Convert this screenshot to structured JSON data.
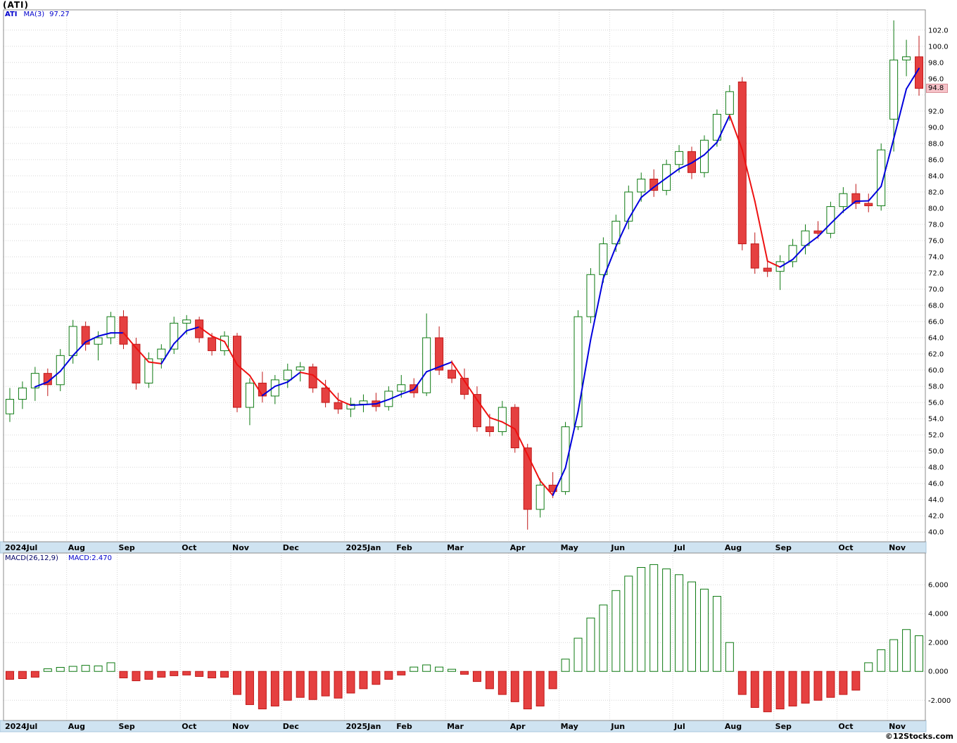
{
  "page": {
    "title": "(ATI)",
    "watermark": "©12Stocks.com"
  },
  "chart_data": {
    "type": "candlestick",
    "sub_chart": "macd_bar",
    "symbol": "ATI",
    "legend": {
      "symbol": "ATI",
      "ma_label": "MA(3)",
      "ma_value": "97.27"
    },
    "ma_period": 3,
    "price_axis": {
      "min": 40,
      "max": 102,
      "step": 2,
      "suppress_label_at": 94,
      "last_price": "94.8"
    },
    "x_axis_months": [
      {
        "label": "2024Jul",
        "week_index": 0
      },
      {
        "label": "Aug",
        "week_index": 5
      },
      {
        "label": "Sep",
        "week_index": 9
      },
      {
        "label": "Oct",
        "week_index": 14
      },
      {
        "label": "Nov",
        "week_index": 18
      },
      {
        "label": "Dec",
        "week_index": 22
      },
      {
        "label": "2025Jan",
        "week_index": 27
      },
      {
        "label": "Feb",
        "week_index": 31
      },
      {
        "label": "Mar",
        "week_index": 35
      },
      {
        "label": "Apr",
        "week_index": 40
      },
      {
        "label": "May",
        "week_index": 44
      },
      {
        "label": "Jun",
        "week_index": 48
      },
      {
        "label": "Jul",
        "week_index": 53
      },
      {
        "label": "Aug",
        "week_index": 57
      },
      {
        "label": "Sep",
        "week_index": 61
      },
      {
        "label": "Oct",
        "week_index": 66
      },
      {
        "label": "Nov",
        "week_index": 70
      }
    ],
    "candles_ohlc": [
      [
        54.6,
        57.8,
        53.6,
        56.4
      ],
      [
        56.4,
        58.6,
        55.2,
        57.8
      ],
      [
        57.8,
        60.4,
        56.2,
        59.6
      ],
      [
        59.6,
        60.2,
        56.8,
        58.2
      ],
      [
        58.2,
        62.6,
        57.4,
        61.8
      ],
      [
        61.8,
        66.2,
        60.8,
        65.4
      ],
      [
        65.4,
        66.0,
        62.4,
        63.2
      ],
      [
        63.2,
        64.8,
        61.2,
        64.0
      ],
      [
        64.0,
        67.2,
        63.2,
        66.6
      ],
      [
        66.6,
        67.4,
        62.6,
        63.2
      ],
      [
        63.2,
        64.0,
        57.6,
        58.4
      ],
      [
        58.4,
        62.2,
        57.8,
        61.4
      ],
      [
        61.4,
        63.2,
        60.2,
        62.6
      ],
      [
        62.6,
        66.6,
        62.0,
        65.8
      ],
      [
        65.8,
        66.8,
        64.4,
        66.2
      ],
      [
        66.2,
        66.6,
        63.4,
        64.0
      ],
      [
        64.0,
        64.6,
        61.8,
        62.4
      ],
      [
        62.4,
        64.8,
        61.8,
        64.2
      ],
      [
        64.2,
        64.6,
        54.8,
        55.4
      ],
      [
        55.4,
        59.0,
        53.2,
        58.4
      ],
      [
        58.4,
        59.8,
        56.0,
        56.8
      ],
      [
        56.8,
        59.4,
        55.8,
        58.8
      ],
      [
        58.8,
        60.8,
        57.8,
        60.0
      ],
      [
        60.0,
        61.0,
        58.6,
        60.4
      ],
      [
        60.4,
        60.8,
        57.2,
        57.8
      ],
      [
        57.8,
        58.8,
        55.4,
        56.0
      ],
      [
        56.0,
        57.2,
        54.6,
        55.2
      ],
      [
        55.2,
        56.6,
        54.2,
        55.8
      ],
      [
        55.8,
        57.0,
        54.8,
        56.2
      ],
      [
        56.2,
        57.2,
        54.9,
        55.5
      ],
      [
        55.5,
        58.0,
        55.0,
        57.4
      ],
      [
        57.4,
        59.4,
        56.6,
        58.2
      ],
      [
        58.2,
        59.0,
        56.6,
        57.2
      ],
      [
        57.2,
        67.0,
        56.8,
        64.0
      ],
      [
        64.0,
        65.4,
        59.4,
        60.0
      ],
      [
        60.0,
        61.2,
        58.4,
        59.0
      ],
      [
        59.0,
        60.2,
        56.4,
        57.0
      ],
      [
        57.0,
        58.0,
        52.4,
        53.0
      ],
      [
        53.0,
        54.6,
        51.8,
        52.4
      ],
      [
        52.4,
        56.2,
        51.9,
        55.4
      ],
      [
        55.4,
        55.8,
        49.8,
        50.4
      ],
      [
        50.4,
        50.9,
        40.3,
        42.8
      ],
      [
        42.8,
        46.6,
        41.8,
        45.8
      ],
      [
        45.8,
        47.4,
        44.2,
        45.0
      ],
      [
        45.0,
        53.6,
        44.6,
        53.0
      ],
      [
        53.0,
        67.4,
        52.6,
        66.6
      ],
      [
        66.6,
        72.6,
        65.8,
        71.8
      ],
      [
        71.8,
        76.4,
        70.8,
        75.6
      ],
      [
        75.6,
        79.2,
        74.6,
        78.4
      ],
      [
        78.4,
        82.8,
        77.4,
        82.0
      ],
      [
        82.0,
        84.4,
        80.8,
        83.6
      ],
      [
        83.6,
        84.8,
        81.4,
        82.2
      ],
      [
        82.2,
        86.0,
        81.6,
        85.4
      ],
      [
        85.4,
        87.8,
        84.4,
        87.0
      ],
      [
        87.0,
        87.6,
        83.6,
        84.4
      ],
      [
        84.4,
        89.0,
        83.8,
        88.4
      ],
      [
        88.4,
        92.2,
        87.6,
        91.6
      ],
      [
        91.6,
        95.2,
        90.8,
        94.4
      ],
      [
        95.6,
        96.2,
        74.8,
        75.6
      ],
      [
        75.6,
        77.0,
        71.9,
        72.6
      ],
      [
        72.6,
        73.6,
        71.5,
        72.2
      ],
      [
        72.2,
        74.2,
        69.9,
        73.4
      ],
      [
        73.4,
        76.2,
        72.7,
        75.4
      ],
      [
        75.4,
        78.0,
        74.3,
        77.2
      ],
      [
        77.2,
        78.4,
        76.2,
        76.9
      ],
      [
        76.9,
        80.8,
        76.3,
        80.2
      ],
      [
        80.2,
        82.6,
        79.4,
        81.8
      ],
      [
        81.8,
        83.0,
        79.9,
        80.6
      ],
      [
        80.6,
        81.8,
        79.5,
        80.3
      ],
      [
        80.3,
        88.0,
        79.7,
        87.2
      ],
      [
        91.0,
        103.2,
        87.0,
        98.31
      ],
      [
        98.31,
        100.8,
        96.3,
        98.7
      ],
      [
        98.7,
        101.3,
        93.9,
        94.8
      ]
    ],
    "macd_panel": {
      "label": "MACD(26,12,9)",
      "current_label": "MACD:2.470",
      "ticks": [
        6,
        4,
        2,
        0,
        -2
      ],
      "range": [
        -3.4,
        8.2
      ],
      "values": [
        -0.55,
        -0.5,
        -0.4,
        0.18,
        0.28,
        0.35,
        0.42,
        0.38,
        0.6,
        -0.45,
        -0.65,
        -0.55,
        -0.4,
        -0.3,
        -0.25,
        -0.35,
        -0.45,
        -0.4,
        -1.6,
        -2.3,
        -2.6,
        -2.4,
        -2.0,
        -1.8,
        -1.95,
        -1.7,
        -1.85,
        -1.5,
        -1.2,
        -0.9,
        -0.55,
        -0.25,
        0.3,
        0.45,
        0.3,
        0.15,
        -0.2,
        -0.7,
        -1.2,
        -1.6,
        -2.1,
        -2.6,
        -2.4,
        -1.2,
        0.85,
        2.3,
        3.7,
        4.6,
        5.6,
        6.6,
        7.2,
        7.4,
        7.1,
        6.7,
        6.2,
        5.7,
        5.2,
        2.0,
        -1.6,
        -2.5,
        -2.8,
        -2.6,
        -2.4,
        -2.2,
        -2.0,
        -1.8,
        -1.6,
        -1.3,
        0.6,
        1.5,
        2.2,
        2.9,
        2.47
      ]
    },
    "colors": {
      "up": "#ffffff",
      "up_stroke": "#0e7a12",
      "down": "#e54040",
      "down_stroke": "#c01818",
      "ma_rising": "#0000dd",
      "ma_falling": "#ee1111",
      "grid": "#d6d6d6",
      "border": "#8c8c8c",
      "band": "#cfe3f1",
      "band_border": "#a9c7dd",
      "price_tag_bg": "#f6c3c9",
      "price_tag_border": "#d98e96"
    }
  }
}
